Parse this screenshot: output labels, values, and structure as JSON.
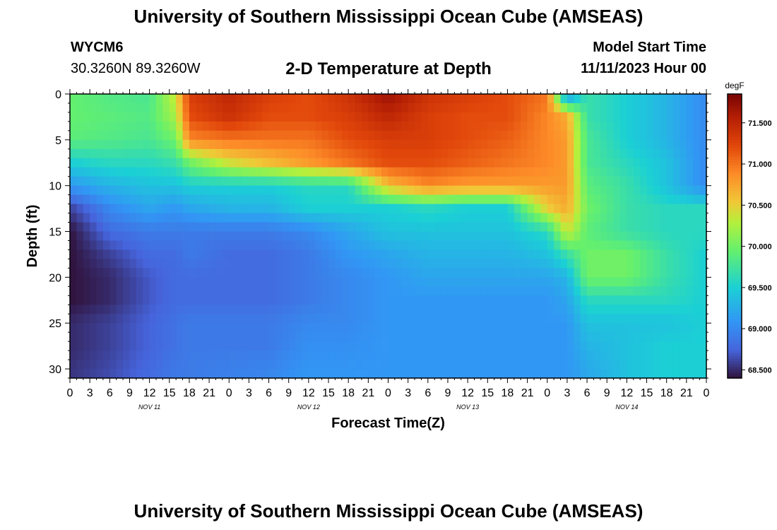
{
  "header": {
    "title": "University of Southern Mississippi Ocean Cube (AMSEAS)",
    "station_id": "WYCM6",
    "station_coords": "30.3260N  89.3260W",
    "plot_title": "2-D Temperature at Depth",
    "model_label": "Model Start Time",
    "model_time": "11/11/2023 Hour 00"
  },
  "footer": {
    "title": "University of Southern Mississippi Ocean Cube (AMSEAS)"
  },
  "chart_data": {
    "type": "heatmap",
    "title": "2-D Temperature at Depth",
    "xlabel": "Forecast Time(Z)",
    "ylabel": "Depth (ft)",
    "x_range_hours": [
      0,
      96
    ],
    "y_range_ft": [
      0,
      31
    ],
    "x_tick_labels": [
      "0",
      "3",
      "6",
      "9",
      "12",
      "15",
      "18",
      "21",
      "0",
      "3",
      "6",
      "9",
      "12",
      "15",
      "18",
      "21",
      "0",
      "3",
      "6",
      "9",
      "12",
      "15",
      "18",
      "21",
      "0",
      "3",
      "6",
      "9",
      "12",
      "15",
      "18",
      "21",
      "0"
    ],
    "day_labels": [
      "NOV 11",
      "NOV 12",
      "NOV 13",
      "NOV 14"
    ],
    "y_ticks": [
      0,
      5,
      10,
      15,
      20,
      25,
      30
    ],
    "colorbar": {
      "unit": "degF",
      "min": 68.4,
      "max": 71.85,
      "tick_values": [
        68.5,
        69.0,
        69.5,
        70.0,
        70.5,
        71.0,
        71.5
      ],
      "tick_labels": [
        "68.500",
        "69.000",
        "69.500",
        "70.000",
        "70.500",
        "71.000",
        "71.500"
      ]
    },
    "depths_ft": [
      0,
      2.5,
      5,
      7.5,
      10,
      12.5,
      15,
      17.5,
      20,
      22.5,
      25,
      27.5,
      31
    ],
    "times_hours": [
      0,
      6,
      12,
      16,
      18,
      24,
      30,
      36,
      42,
      48,
      54,
      60,
      66,
      72,
      75,
      78,
      84,
      90,
      96
    ],
    "temperature_grid_degF": [
      [
        69.95,
        69.85,
        69.8,
        70.4,
        71.3,
        71.5,
        71.3,
        71.2,
        71.4,
        71.7,
        71.4,
        71.3,
        71.2,
        71.0,
        68.95,
        69.7,
        69.5,
        69.3,
        69.0
      ],
      [
        69.95,
        69.9,
        69.85,
        70.25,
        71.2,
        71.4,
        71.2,
        71.2,
        71.3,
        71.5,
        71.3,
        71.2,
        71.2,
        70.9,
        70.7,
        69.7,
        69.5,
        69.3,
        69.0
      ],
      [
        69.9,
        69.85,
        69.8,
        70.0,
        70.9,
        71.0,
        71.0,
        71.0,
        71.2,
        71.3,
        71.3,
        71.2,
        71.1,
        70.9,
        70.8,
        69.8,
        69.5,
        69.3,
        69.0
      ],
      [
        69.5,
        69.6,
        69.6,
        69.7,
        70.0,
        70.4,
        70.6,
        70.8,
        71.0,
        71.2,
        71.2,
        71.1,
        71.0,
        70.9,
        70.8,
        69.8,
        69.6,
        69.4,
        69.0
      ],
      [
        69.1,
        69.3,
        69.4,
        69.4,
        69.5,
        69.5,
        69.5,
        69.6,
        69.6,
        70.6,
        70.9,
        70.8,
        70.8,
        70.8,
        70.8,
        69.9,
        69.7,
        69.4,
        69.0
      ],
      [
        68.6,
        69.0,
        69.2,
        69.1,
        69.2,
        69.3,
        69.3,
        69.5,
        69.5,
        69.5,
        69.6,
        69.5,
        69.5,
        70.5,
        70.7,
        70.0,
        69.7,
        69.6,
        69.6
      ],
      [
        68.4,
        68.8,
        68.9,
        68.9,
        68.9,
        68.9,
        68.9,
        69.0,
        69.2,
        69.4,
        69.4,
        69.4,
        69.4,
        69.6,
        70.4,
        69.9,
        69.7,
        69.6,
        69.6
      ],
      [
        68.4,
        68.6,
        68.8,
        68.8,
        68.9,
        68.8,
        68.8,
        68.9,
        69.1,
        69.2,
        69.3,
        69.3,
        69.3,
        69.4,
        69.7,
        70.0,
        70.0,
        69.7,
        69.5
      ],
      [
        68.4,
        68.5,
        68.7,
        68.8,
        68.8,
        68.8,
        68.8,
        68.9,
        69.0,
        69.1,
        69.2,
        69.2,
        69.2,
        69.2,
        69.3,
        70.0,
        70.0,
        69.7,
        69.5
      ],
      [
        68.4,
        68.5,
        68.7,
        68.8,
        68.8,
        68.8,
        68.8,
        68.9,
        69.0,
        69.1,
        69.1,
        69.1,
        69.1,
        69.1,
        69.2,
        69.6,
        69.6,
        69.6,
        69.5
      ],
      [
        68.5,
        68.6,
        68.75,
        68.85,
        68.9,
        68.9,
        68.9,
        69.0,
        69.0,
        69.1,
        69.1,
        69.1,
        69.1,
        69.1,
        69.1,
        69.4,
        69.4,
        69.4,
        69.5
      ],
      [
        68.5,
        68.6,
        68.75,
        68.85,
        68.9,
        68.9,
        68.9,
        69.05,
        69.05,
        69.1,
        69.1,
        69.1,
        69.1,
        69.1,
        69.1,
        69.3,
        69.4,
        69.5,
        69.5
      ],
      [
        68.55,
        68.65,
        68.8,
        68.9,
        68.9,
        68.95,
        69.0,
        69.1,
        69.1,
        69.1,
        69.1,
        69.1,
        69.1,
        69.1,
        69.1,
        69.2,
        69.4,
        69.5,
        69.5
      ]
    ]
  }
}
